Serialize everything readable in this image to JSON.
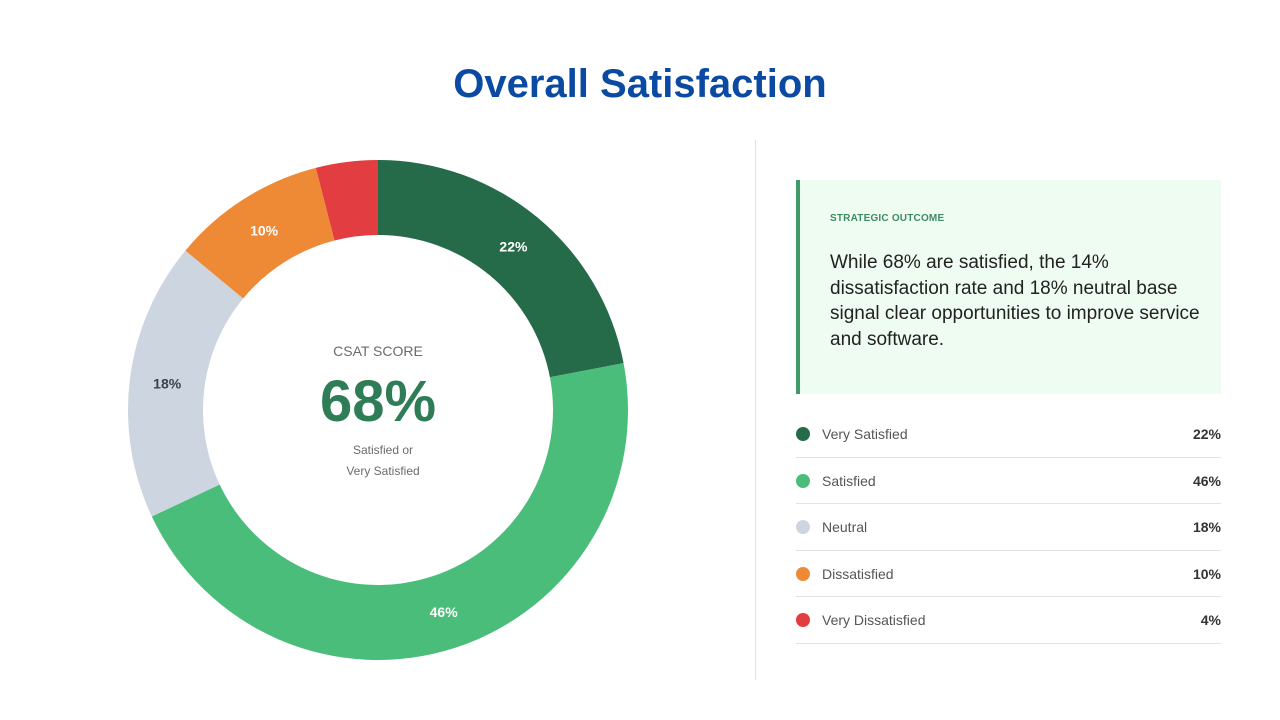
{
  "title": "Overall Satisfaction",
  "center": {
    "label": "CSAT SCORE",
    "value": "68%",
    "sub_line1": "Satisfied or",
    "sub_line2": "Very Satisfied"
  },
  "callout": {
    "kicker": "STRATEGIC OUTCOME",
    "text": "While 68% are satisfied, the 14% dissatisfaction rate and 18% neutral base signal clear opportunities to improve service and software."
  },
  "chart_data": {
    "type": "pie",
    "subtype": "donut",
    "title": "Overall Satisfaction",
    "categories": [
      "Very Satisfied",
      "Satisfied",
      "Neutral",
      "Dissatisfied",
      "Very Dissatisfied"
    ],
    "values": [
      22,
      46,
      18,
      10,
      4
    ],
    "labels": [
      "22%",
      "46%",
      "18%",
      "10%",
      "4%"
    ],
    "colors": [
      "#256b4a",
      "#4bbd7a",
      "#cdd6e0",
      "#ee8a35",
      "#e23e41"
    ],
    "label_colors": [
      "#ffffff",
      "#ffffff",
      "#3a4150",
      "#ffffff",
      "#ffffff"
    ],
    "show_label": [
      true,
      true,
      true,
      true,
      false
    ],
    "legend_position": "right"
  },
  "legend": [
    {
      "label": "Very Satisfied",
      "value": "22%",
      "color": "#256b4a"
    },
    {
      "label": "Satisfied",
      "value": "46%",
      "color": "#4bbd7a"
    },
    {
      "label": "Neutral",
      "value": "18%",
      "color": "#cdd6e0"
    },
    {
      "label": "Dissatisfied",
      "value": "10%",
      "color": "#ee8a35"
    },
    {
      "label": "Very Dissatisfied",
      "value": "4%",
      "color": "#e23e41"
    }
  ]
}
